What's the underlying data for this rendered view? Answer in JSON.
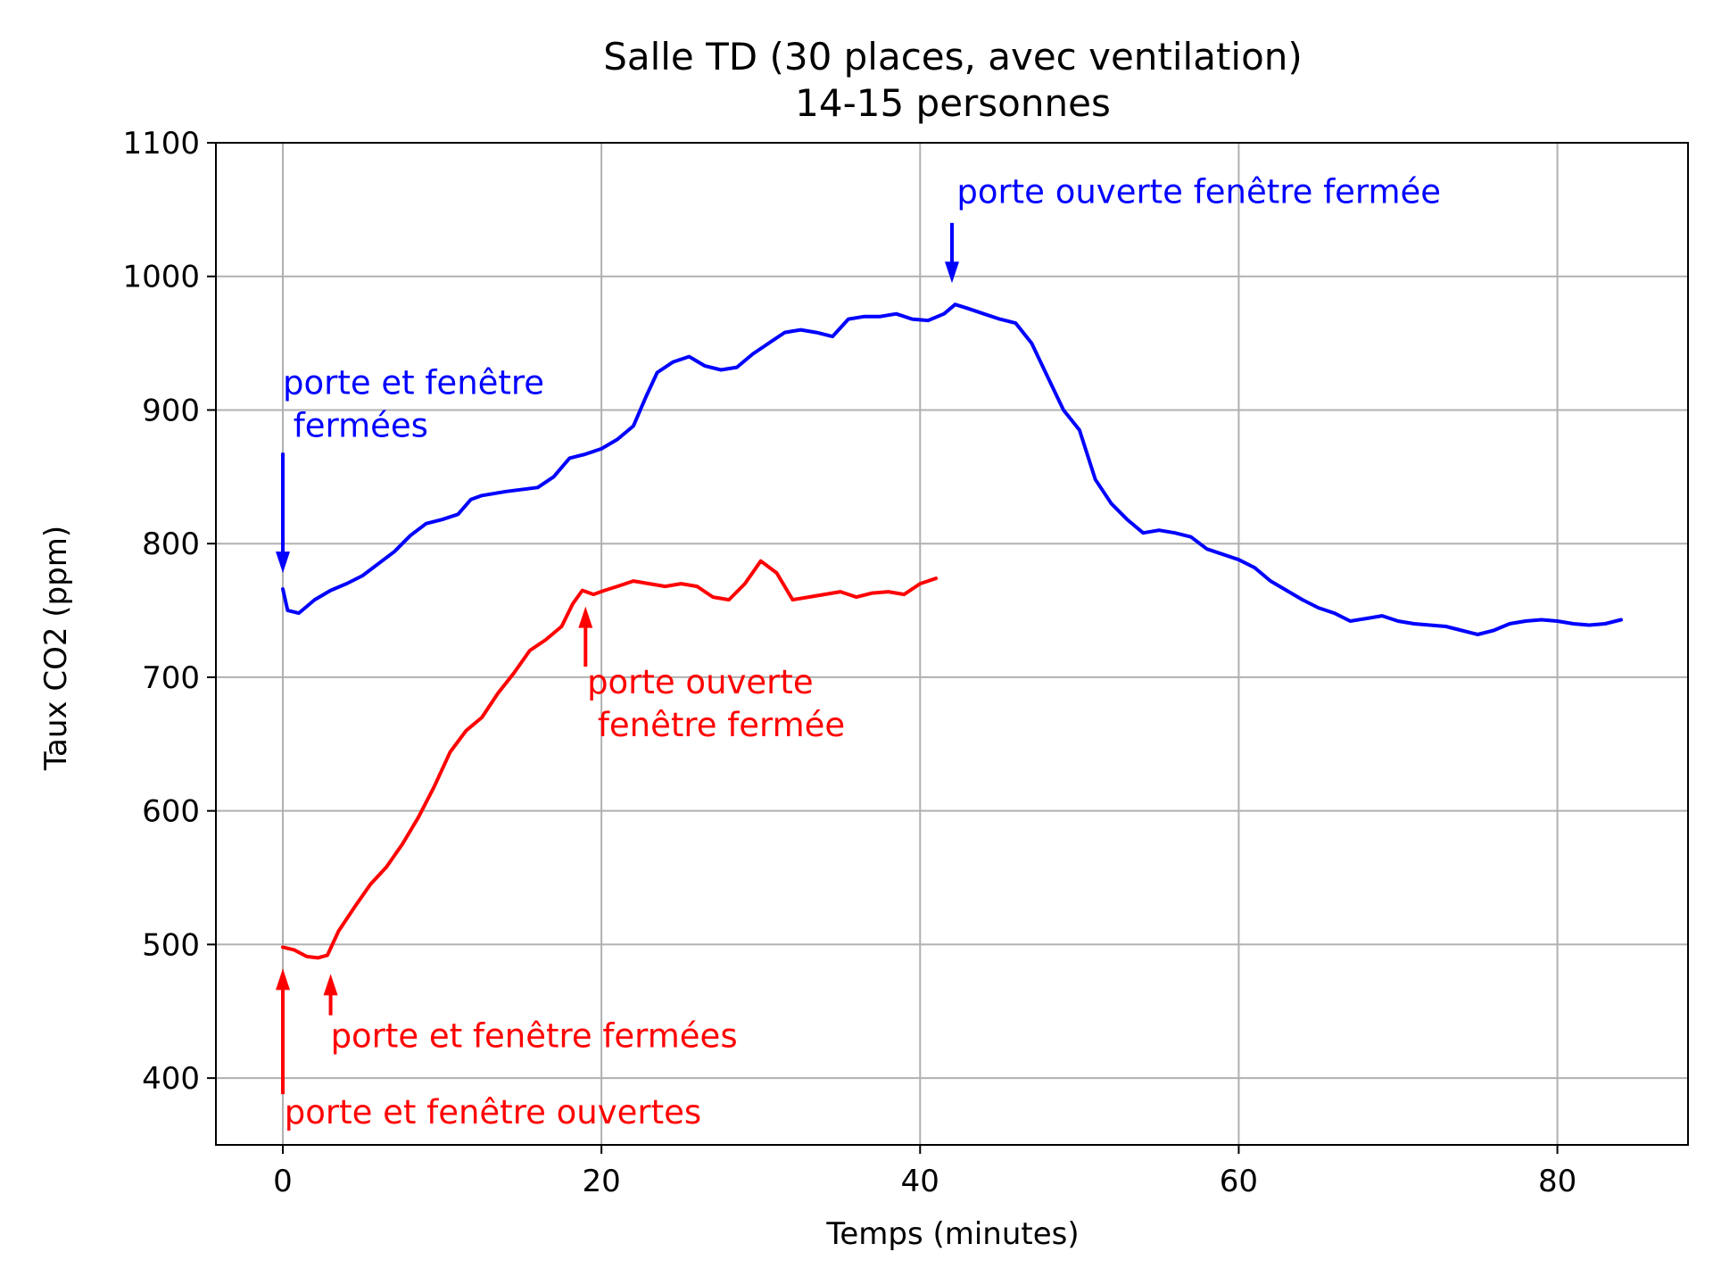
{
  "chart_data": {
    "type": "line",
    "title_line1": "Salle TD (30 places, avec ventilation)",
    "title_line2": "14-15 personnes",
    "xlabel": "Temps (minutes)",
    "ylabel": "Taux CO2 (ppm)",
    "xlim": [
      -4.2,
      88.2
    ],
    "ylim": [
      350,
      1100
    ],
    "xticks": [
      0,
      20,
      40,
      60,
      80
    ],
    "yticks": [
      400,
      500,
      600,
      700,
      800,
      900,
      1000,
      1100
    ],
    "grid": true,
    "series": [
      {
        "color": "#0000ff",
        "x": [
          0,
          0.3,
          1,
          2,
          3,
          4,
          5,
          6,
          7,
          8,
          9,
          10,
          11,
          11.8,
          12.5,
          14,
          16,
          17,
          18,
          19,
          20,
          21,
          22,
          22.8,
          23.5,
          24.5,
          25.5,
          26.5,
          27.5,
          28.5,
          29.5,
          30.5,
          31.5,
          32.5,
          33.5,
          34.5,
          35.5,
          36.5,
          37.5,
          38.5,
          39.5,
          40.5,
          41.5,
          42.2,
          43,
          44,
          45,
          46,
          47,
          48,
          49,
          50,
          51,
          52,
          53,
          54,
          55,
          56,
          57,
          58,
          59,
          60,
          61,
          62,
          63,
          64,
          65,
          66,
          67,
          68,
          69,
          70,
          71,
          72,
          73,
          74,
          75,
          76,
          77,
          78,
          79,
          80,
          81,
          82,
          83,
          84
        ],
        "y": [
          766,
          750,
          748,
          758,
          765,
          770,
          776,
          785,
          794,
          806,
          815,
          818,
          822,
          833,
          836,
          839,
          842,
          850,
          864,
          867,
          871,
          878,
          888,
          910,
          928,
          936,
          940,
          933,
          930,
          932,
          942,
          950,
          958,
          960,
          958,
          955,
          968,
          970,
          970,
          972,
          968,
          967,
          972,
          979,
          976,
          972,
          968,
          965,
          950,
          925,
          900,
          885,
          848,
          830,
          818,
          808,
          810,
          808,
          805,
          796,
          792,
          788,
          782,
          772,
          765,
          758,
          752,
          748,
          742,
          744,
          746,
          742,
          740,
          739,
          738,
          735,
          732,
          735,
          740,
          742,
          743,
          742,
          740,
          739,
          740,
          743
        ]
      },
      {
        "color": "#ff0000",
        "x": [
          0,
          0.7,
          1.5,
          2.2,
          2.8,
          3.5,
          4.5,
          5.5,
          6.5,
          7.5,
          8.5,
          9.5,
          10.5,
          11.5,
          12.5,
          13.5,
          14.5,
          15.5,
          16.5,
          17.5,
          18.2,
          18.8,
          19.5,
          20.2,
          21,
          22,
          23,
          24,
          25,
          26,
          27,
          28,
          29,
          30,
          31,
          32,
          33,
          34,
          35,
          36,
          37,
          38,
          39,
          40,
          41
        ],
        "y": [
          498,
          496,
          491,
          490,
          492,
          510,
          528,
          545,
          558,
          575,
          595,
          618,
          644,
          660,
          670,
          688,
          703,
          720,
          728,
          738,
          755,
          765,
          762,
          765,
          768,
          772,
          770,
          768,
          770,
          768,
          760,
          758,
          770,
          787,
          778,
          758,
          760,
          762,
          764,
          760,
          763,
          764,
          762,
          770,
          774
        ]
      }
    ],
    "arrows": [
      {
        "color": "#0000ff",
        "x": 0,
        "y_tail": 868,
        "y_head": 778
      },
      {
        "color": "#0000ff",
        "x": 42,
        "y_tail": 1040,
        "y_head": 995
      },
      {
        "color": "#ff0000",
        "x": 0,
        "y_tail": 388,
        "y_head": 482
      },
      {
        "color": "#ff0000",
        "x": 3,
        "y_tail": 447,
        "y_head": 478
      },
      {
        "color": "#ff0000",
        "x": 19,
        "y_tail": 708,
        "y_head": 753
      }
    ],
    "annotations": [
      {
        "color": "#0000ff",
        "lines": [
          "porte et fenêtre",
          " fermées"
        ],
        "x": 0,
        "y": 912
      },
      {
        "color": "#0000ff",
        "lines": [
          "porte ouverte fenêtre fermée"
        ],
        "x": 42.3,
        "y": 1055
      },
      {
        "color": "#ff0000",
        "lines": [
          "porte ouverte",
          " fenêtre fermée"
        ],
        "x": 19.1,
        "y": 688
      },
      {
        "color": "#ff0000",
        "lines": [
          "porte et fenêtre fermées"
        ],
        "x": 3,
        "y": 423
      },
      {
        "color": "#ff0000",
        "lines": [
          "porte et fenêtre ouvertes"
        ],
        "x": 0.1,
        "y": 366
      }
    ]
  }
}
